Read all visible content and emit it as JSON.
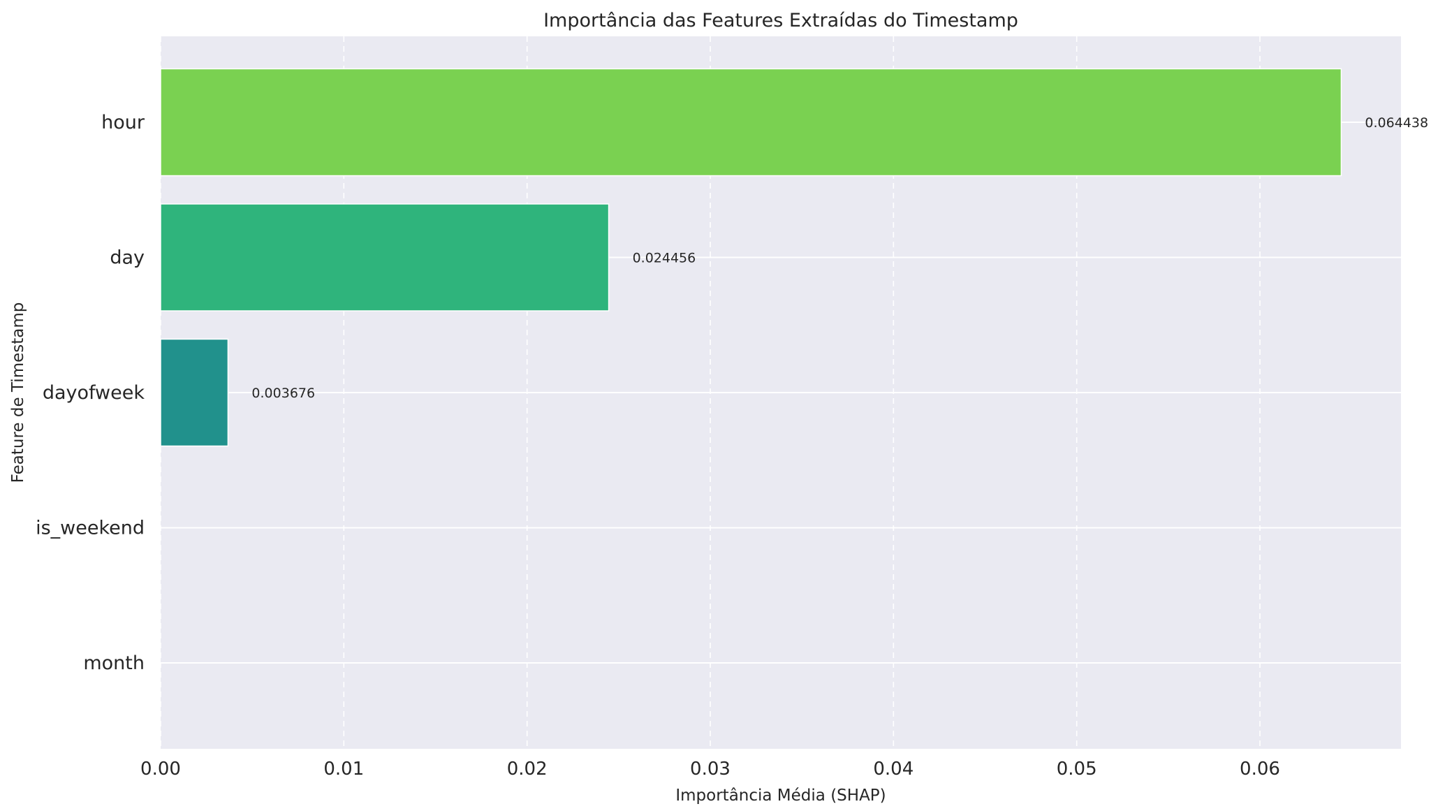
{
  "chart_data": {
    "type": "bar",
    "orientation": "horizontal",
    "title": "Importância das Features Extraídas do Timestamp",
    "xlabel": "Importância Média (SHAP)",
    "ylabel": "Feature de Timestamp",
    "categories": [
      "hour",
      "day",
      "dayofweek",
      "is_weekend",
      "month"
    ],
    "values": [
      0.064438,
      0.024456,
      0.003676,
      0,
      0
    ],
    "value_labels": [
      "0.064438",
      "0.024456",
      "0.003676",
      "",
      ""
    ],
    "colors": [
      "#7ad151",
      "#2fb47c",
      "#21918c",
      "#3b528b",
      "#440154"
    ],
    "xlim": [
      0,
      0.0677
    ],
    "xticks": [
      0.0,
      0.01,
      0.02,
      0.03,
      0.04,
      0.05,
      0.06
    ],
    "xtick_labels": [
      "0.00",
      "0.01",
      "0.02",
      "0.03",
      "0.04",
      "0.05",
      "0.06"
    ],
    "grid": true,
    "background": "#eaeaf2"
  }
}
